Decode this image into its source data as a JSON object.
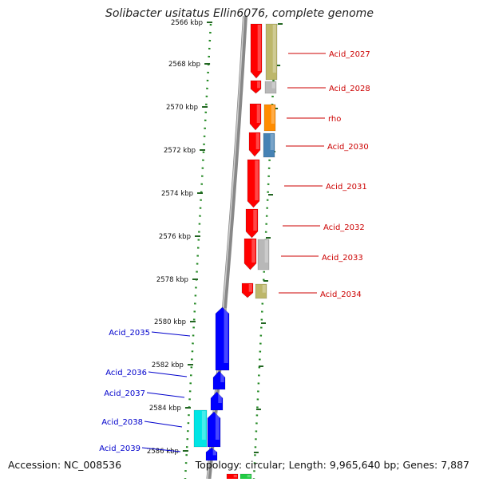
{
  "title": "Solibacter usitatus Ellin6076, complete genome",
  "footer": {
    "accession": "Accession: NC_008536",
    "summary": "Topology: circular; Length: 9,965,640 bp; Genes: 7,887"
  },
  "axis": {
    "unit": "kbp",
    "ticks": [
      "2566 kbp",
      "2568 kbp",
      "2570 kbp",
      "2572 kbp",
      "2574 kbp",
      "2576 kbp",
      "2578 kbp",
      "2580 kbp",
      "2582 kbp",
      "2584 kbp",
      "2586 kbp"
    ]
  },
  "colors": {
    "forward_label": "#cc0000",
    "reverse_label": "#0000cc",
    "track_dots": "#228822",
    "red": "#ff0000",
    "blue": "#0000ff",
    "cyan": "#00e5e5",
    "olive": "#bdb76b",
    "grey": "#b8b8b8",
    "orange": "#ff8c00",
    "steel": "#4682b4"
  },
  "genes_forward": [
    {
      "name": "Acid_2027"
    },
    {
      "name": "Acid_2028"
    },
    {
      "name": "rho"
    },
    {
      "name": "Acid_2030"
    },
    {
      "name": "Acid_2031"
    },
    {
      "name": "Acid_2032"
    },
    {
      "name": "Acid_2033"
    },
    {
      "name": "Acid_2034"
    }
  ],
  "genes_reverse": [
    {
      "name": "Acid_2035"
    },
    {
      "name": "Acid_2036"
    },
    {
      "name": "Acid_2037"
    },
    {
      "name": "Acid_2038"
    },
    {
      "name": "Acid_2039"
    }
  ]
}
